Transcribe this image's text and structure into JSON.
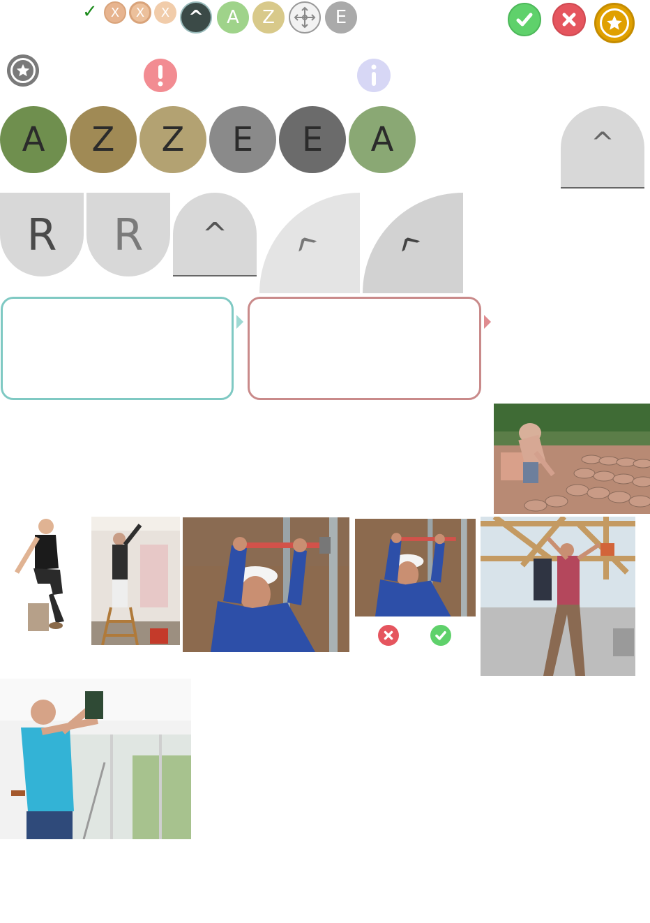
{
  "top_bar": {
    "check_mark": "✓",
    "x1": "X",
    "x2": "X",
    "x3": "X",
    "caret": "^",
    "a": "A",
    "z": "Z",
    "e": "E"
  },
  "letters": {
    "row": [
      "A",
      "Z",
      "Z",
      "E",
      "E",
      "A"
    ],
    "caret_tab": "^"
  },
  "tiles": {
    "r1": "R",
    "r2": "R",
    "caret1": "^",
    "caret2": "^",
    "caret3": "^"
  },
  "colors": {
    "green_dark": "#6f8f4e",
    "olive": "#a08a55",
    "khaki": "#b3a272",
    "grey": "#8a8a8a",
    "grey_dark": "#6b6b6b",
    "green_light": "#8aa874",
    "teal_border": "#7fc9c3",
    "rose_border": "#c98a8a",
    "success": "#5fd16b",
    "danger": "#e5555e",
    "gold": "#e0a000"
  },
  "icons": [
    "check-icon",
    "x-icon",
    "caret-icon",
    "a-icon",
    "z-icon",
    "move-icon",
    "e-icon",
    "accept-icon",
    "reject-icon",
    "star-icon",
    "alert-icon",
    "info-icon"
  ]
}
